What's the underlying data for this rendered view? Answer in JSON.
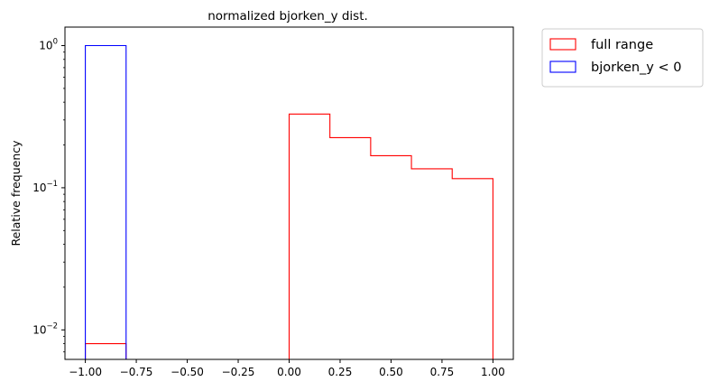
{
  "chart_data": {
    "type": "histogram",
    "title": "normalized bjorken_y dist.",
    "xlabel": "",
    "ylabel": "Relative frequency",
    "xlim": [
      -1.1,
      1.1
    ],
    "ylim": [
      0.0062,
      1.35
    ],
    "yscale": "log",
    "grid": false,
    "legend_position": "outside-top-right",
    "x_ticks": [
      {
        "value": -1.0,
        "label": "−1.00"
      },
      {
        "value": -0.75,
        "label": "−0.75"
      },
      {
        "value": -0.5,
        "label": "−0.50"
      },
      {
        "value": -0.25,
        "label": "−0.25"
      },
      {
        "value": 0.0,
        "label": "0.00"
      },
      {
        "value": 0.25,
        "label": "0.25"
      },
      {
        "value": 0.5,
        "label": "0.50"
      },
      {
        "value": 0.75,
        "label": "0.75"
      },
      {
        "value": 1.0,
        "label": "1.00"
      }
    ],
    "y_ticks": [
      {
        "value": 1,
        "base": "10",
        "exp": "0"
      },
      {
        "value": 0.1,
        "base": "10",
        "exp": "−1"
      },
      {
        "value": 0.01,
        "base": "10",
        "exp": "−2"
      }
    ],
    "bin_edges": [
      -1.0,
      -0.8,
      -0.6,
      -0.4,
      -0.2,
      0.0,
      0.2,
      0.4,
      0.6,
      0.8,
      1.0
    ],
    "series": [
      {
        "name": "full range",
        "color": "#ff0000",
        "values": [
          0.008,
          0,
          0,
          0,
          0,
          0.33,
          0.225,
          0.168,
          0.136,
          0.116
        ]
      },
      {
        "name": "bjorken_y < 0",
        "color": "#0000ff",
        "values": [
          1.0,
          0,
          0,
          0,
          0,
          0,
          0,
          0,
          0,
          0
        ]
      }
    ]
  }
}
